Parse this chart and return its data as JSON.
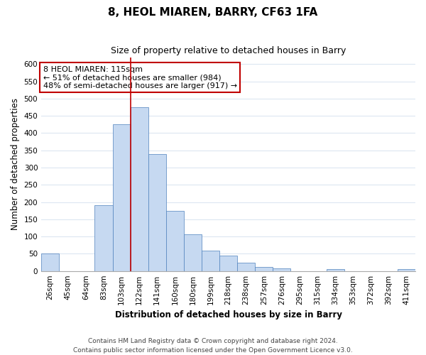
{
  "title": "8, HEOL MIAREN, BARRY, CF63 1FA",
  "subtitle": "Size of property relative to detached houses in Barry",
  "xlabel": "Distribution of detached houses by size in Barry",
  "ylabel": "Number of detached properties",
  "bar_labels": [
    "26sqm",
    "45sqm",
    "64sqm",
    "83sqm",
    "103sqm",
    "122sqm",
    "141sqm",
    "160sqm",
    "180sqm",
    "199sqm",
    "218sqm",
    "238sqm",
    "257sqm",
    "276sqm",
    "295sqm",
    "315sqm",
    "334sqm",
    "353sqm",
    "372sqm",
    "392sqm",
    "411sqm"
  ],
  "bar_heights": [
    50,
    0,
    0,
    190,
    425,
    475,
    340,
    175,
    107,
    60,
    44,
    25,
    11,
    8,
    0,
    0,
    5,
    0,
    0,
    0,
    5
  ],
  "bar_color": "#c6d9f1",
  "bar_edge_color": "#4f81bd",
  "vline_x": 4.5,
  "vline_color": "#c00000",
  "annotation_text": "8 HEOL MIAREN: 115sqm\n← 51% of detached houses are smaller (984)\n48% of semi-detached houses are larger (917) →",
  "annotation_box_color": "#ffffff",
  "annotation_box_edge": "#c00000",
  "ylim": [
    0,
    620
  ],
  "yticks": [
    0,
    50,
    100,
    150,
    200,
    250,
    300,
    350,
    400,
    450,
    500,
    550,
    600
  ],
  "footer": "Contains HM Land Registry data © Crown copyright and database right 2024.\nContains public sector information licensed under the Open Government Licence v3.0.",
  "bg_color": "#ffffff",
  "grid_color": "#dce6f1",
  "title_fontsize": 11,
  "subtitle_fontsize": 9,
  "axis_label_fontsize": 8.5,
  "tick_fontsize": 7.5,
  "annotation_fontsize": 8,
  "footer_fontsize": 6.5
}
